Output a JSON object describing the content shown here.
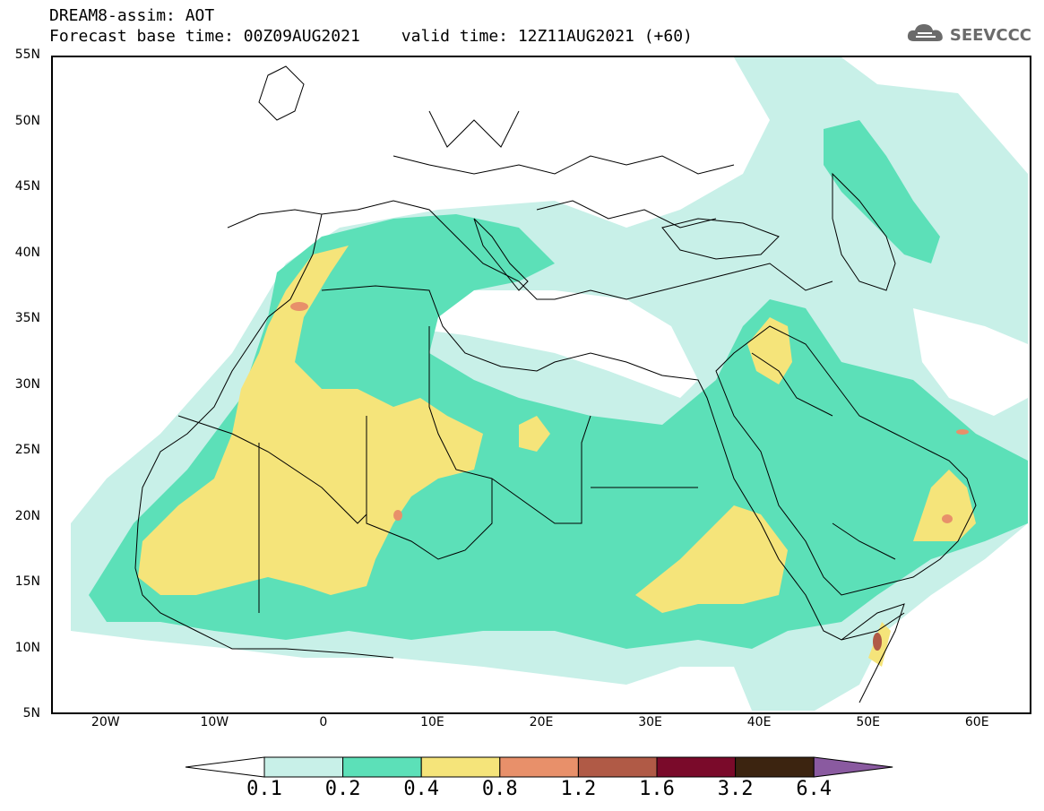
{
  "header": {
    "line1": "DREAM8-assim: AOT",
    "base_time": "Forecast base time: 00Z09AUG2021",
    "valid_time": "valid time: 12Z11AUG2021 (+60)"
  },
  "logo": {
    "text": "SEEVCCC",
    "icon": "cloud-icon"
  },
  "map": {
    "lat_labels": [
      "55N",
      "50N",
      "45N",
      "40N",
      "35N",
      "30N",
      "25N",
      "20N",
      "15N",
      "10N",
      "5N"
    ],
    "lon_labels": [
      "20W",
      "10W",
      "0",
      "10E",
      "20E",
      "30E",
      "40E",
      "50E",
      "60E"
    ],
    "lat_values": [
      55,
      50,
      45,
      40,
      35,
      30,
      25,
      20,
      15,
      10,
      5
    ],
    "lon_values": [
      -20,
      -10,
      0,
      10,
      20,
      30,
      40,
      50,
      60
    ],
    "extent": {
      "lon_min": -25,
      "lon_max": 65,
      "lat_min": 5,
      "lat_max": 55
    }
  },
  "legend": {
    "labels": [
      "0.1",
      "0.2",
      "0.4",
      "0.8",
      "1.2",
      "1.6",
      "3.2",
      "6.4"
    ],
    "colors": [
      "#ffffff",
      "#c8f0e8",
      "#5ce0b8",
      "#f5e47a",
      "#e8906a",
      "#b05a46",
      "#7a0a2a",
      "#3c2410",
      "#8a5aa0"
    ]
  }
}
